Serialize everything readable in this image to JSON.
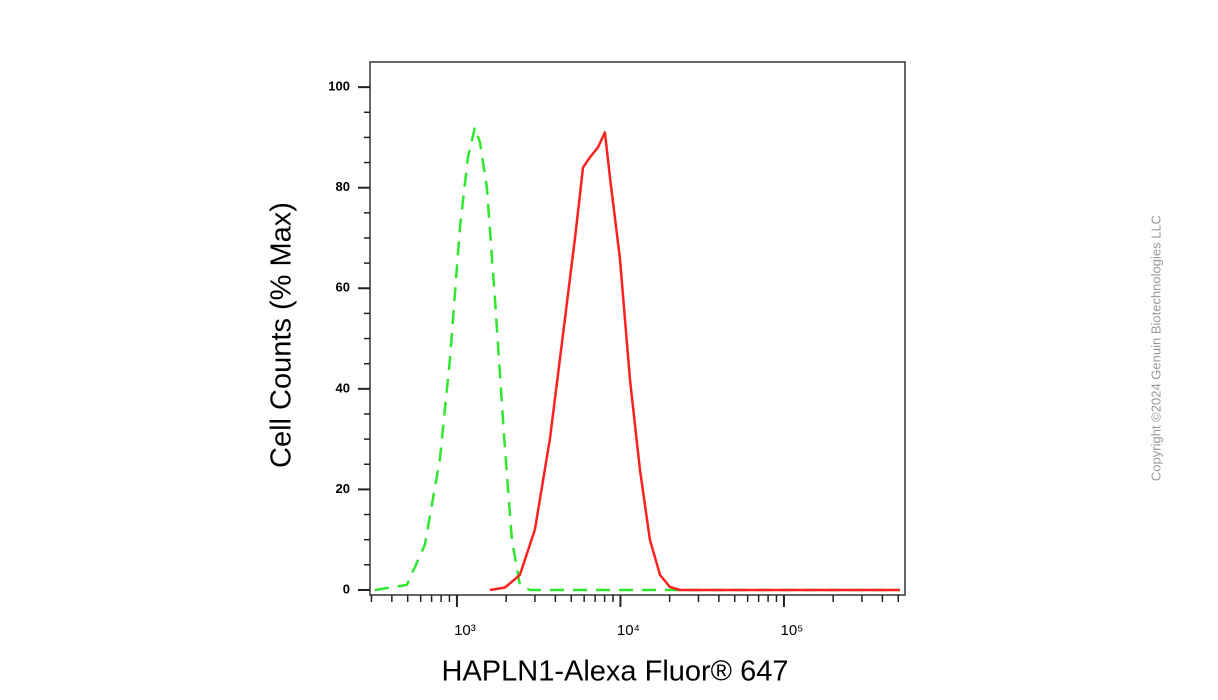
{
  "chart_data": {
    "type": "line",
    "x_scale": "log",
    "xlabel": "HAPLN1-Alexa Fluor® 647",
    "ylabel": "Cell Counts (% Max)",
    "xlim": [
      294,
      550000
    ],
    "ylim": [
      -1,
      105
    ],
    "xticks": [
      {
        "value": 1000,
        "label": "10³"
      },
      {
        "value": 10000,
        "label": "10⁴"
      },
      {
        "value": 100000,
        "label": "10⁵"
      }
    ],
    "xminorticks": [
      300,
      400,
      500,
      600,
      700,
      800,
      900,
      2000,
      3000,
      4000,
      5000,
      6000,
      7000,
      8000,
      9000,
      20000,
      30000,
      40000,
      50000,
      60000,
      70000,
      80000,
      90000,
      200000,
      300000,
      400000,
      500000
    ],
    "yticks": [
      0,
      20,
      40,
      60,
      80,
      100
    ],
    "yminorticks": [
      5,
      10,
      15,
      25,
      30,
      35,
      45,
      50,
      55,
      65,
      70,
      75,
      85,
      90,
      95
    ],
    "series": [
      {
        "color": "#2ee82e",
        "line_style": "dashed",
        "x": [
          315,
          494,
          637,
          787,
          907,
          1042,
          1167,
          1288,
          1383,
          1525,
          1708,
          1967,
          2170,
          2428,
          2795,
          512000
        ],
        "values": [
          0,
          1,
          9,
          26,
          46,
          72,
          86,
          92,
          89,
          80,
          58,
          28,
          10,
          1,
          0,
          0
        ]
      },
      {
        "color": "#ff2020",
        "line_style": "solid",
        "x": [
          1592,
          1967,
          2428,
          3000,
          3706,
          4580,
          5270,
          5900,
          6500,
          7280,
          8040,
          8630,
          9930,
          11430,
          13150,
          15140,
          17450,
          20080,
          23110,
          512000
        ],
        "values": [
          0,
          0.5,
          3,
          12,
          30,
          54,
          70,
          84,
          86,
          88,
          91,
          82,
          66,
          42,
          24,
          10,
          3,
          0.6,
          0,
          0
        ]
      }
    ]
  },
  "watermark": "Copyright ©2024 Genuin Biotechnologies LLC"
}
